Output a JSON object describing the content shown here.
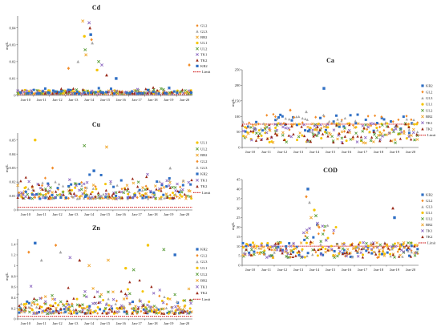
{
  "x_tick_labels": [
    "Jan-10",
    "Jan-11",
    "Jan-12",
    "Jan-13",
    "Jan-14",
    "Jan-15",
    "Jan-16",
    "Jan-17",
    "Jan-18",
    "Jan-19",
    "Jan-20"
  ],
  "series_styles": {
    "KR2": {
      "color": "#2f6fc4",
      "marker": "square"
    },
    "GL2": {
      "color": "#f28c28",
      "marker": "diamond"
    },
    "GL3": {
      "color": "#a6a6a6",
      "marker": "triangle"
    },
    "BR2": {
      "color": "#f0a830",
      "marker": "x"
    },
    "UL1": {
      "color": "#f5c400",
      "marker": "circle"
    },
    "UL2": {
      "color": "#5c9e3c",
      "marker": "x"
    },
    "TK1": {
      "color": "#8e6bc2",
      "marker": "x"
    },
    "TK2": {
      "color": "#9a2a1a",
      "marker": "triangle"
    },
    "Limit": {
      "color": "#d32f2f",
      "marker": "dash"
    }
  },
  "chart_data": [
    {
      "id": "cd",
      "type": "scatter",
      "title": "Cd",
      "ylabel": "mg/L",
      "yticks": [
        0,
        0.01,
        0.02,
        0.03,
        0.04
      ],
      "ytick_labels": [
        "0",
        "0.01",
        "0.02",
        "0.03",
        "0.04"
      ],
      "ylim": [
        0,
        0.047
      ],
      "legend": [
        "GL2",
        "GL3",
        "BR2",
        "UL1",
        "UL2",
        "TK1",
        "TK2",
        "KR2",
        "Limit"
      ],
      "limit": 0.0005,
      "base": 0.001,
      "noise": 0.0035,
      "spikes": [
        [
          3.2,
          0.016
        ],
        [
          3.8,
          0.02
        ],
        [
          4.1,
          0.044
        ],
        [
          4.2,
          0.035
        ],
        [
          4.25,
          0.027
        ],
        [
          4.5,
          0.043
        ],
        [
          4.55,
          0.04
        ],
        [
          4.6,
          0.036
        ],
        [
          4.65,
          0.033
        ],
        [
          4.7,
          0.031
        ],
        [
          4.3,
          0.024
        ],
        [
          5.0,
          0.015
        ],
        [
          5.1,
          0.02
        ],
        [
          5.3,
          0.018
        ],
        [
          5.6,
          0.012
        ],
        [
          6.2,
          0.01
        ],
        [
          10.8,
          0.018
        ]
      ]
    },
    {
      "id": "ca",
      "type": "scatter",
      "title": "Ca",
      "ylabel": "mg/L",
      "yticks": [
        0,
        50,
        100,
        150,
        200,
        250
      ],
      "ytick_labels": [
        "0",
        "50",
        "100",
        "150",
        "200",
        "250"
      ],
      "ylim": [
        0,
        250
      ],
      "legend": [
        "KR2",
        "GL2",
        "GL3",
        "UL1",
        "UL2",
        "BR2",
        "TK1",
        "TK2",
        "Limit"
      ],
      "limit": 75,
      "base": 70,
      "noise": 40,
      "spikes": [
        [
          5.1,
          190
        ],
        [
          3.0,
          120
        ],
        [
          4.0,
          115
        ]
      ]
    },
    {
      "id": "cu",
      "type": "scatter",
      "title": "Cu",
      "ylabel": "mg/L",
      "yticks": [
        0,
        0.01,
        0.02,
        0.03,
        0.04,
        0.05
      ],
      "ytick_labels": [
        "0",
        "0.01",
        "0.02",
        "0.03",
        "0.04",
        "0.05"
      ],
      "ylim": [
        0,
        0.055
      ],
      "legend": [
        "UL1",
        "UL2",
        "BR2",
        "GL2",
        "GL3",
        "KR2",
        "TK1",
        "TK2",
        "Limit"
      ],
      "limit": 0.002,
      "base": 0.008,
      "noise": 0.02,
      "spikes": [
        [
          1.1,
          0.05
        ],
        [
          4.2,
          0.046
        ],
        [
          5.6,
          0.045
        ],
        [
          2.2,
          0.03
        ],
        [
          9.6,
          0.03
        ],
        [
          4.8,
          0.028
        ]
      ]
    },
    {
      "id": "cod",
      "type": "scatter",
      "title": "COD",
      "ylabel": "mg/L",
      "yticks": [
        0,
        5,
        10,
        15,
        20,
        25,
        30,
        35,
        40,
        45
      ],
      "ytick_labels": [
        "0",
        "5",
        "10",
        "15",
        "20",
        "25",
        "30",
        "35",
        "40",
        "45"
      ],
      "ylim": [
        0,
        45
      ],
      "legend": [
        "KR2",
        "GL2",
        "GL3",
        "UL1",
        "UL2",
        "BR2",
        "TK1",
        "TK2",
        "Limit"
      ],
      "limit": 10,
      "base": 8,
      "noise": 8,
      "spikes": [
        [
          4.1,
          40
        ],
        [
          4.0,
          36
        ],
        [
          4.2,
          33
        ],
        [
          4.5,
          29
        ],
        [
          4.6,
          26
        ],
        [
          4.3,
          25
        ],
        [
          4.7,
          22
        ],
        [
          9.4,
          30
        ],
        [
          9.5,
          25
        ],
        [
          4.8,
          20
        ]
      ]
    },
    {
      "id": "zn",
      "type": "scatter",
      "title": "Zn",
      "ylabel": "mg/L",
      "yticks": [
        0,
        0.2,
        0.4,
        0.6,
        0.8,
        1,
        1.2,
        1.4
      ],
      "ytick_labels": [
        "0",
        "0.2",
        "0.4",
        "0.6",
        "0.8",
        "1",
        "1.2",
        "1.4"
      ],
      "ylim": [
        0,
        1.5
      ],
      "legend": [
        "KR2",
        "GL2",
        "GL3",
        "UL1",
        "UL2",
        "BR2",
        "TK1",
        "TK2",
        "Limit"
      ],
      "limit": 0.05,
      "base": 0.1,
      "noise": 0.55,
      "spikes": [
        [
          1.1,
          1.42
        ],
        [
          2.4,
          1.38
        ],
        [
          2.7,
          1.25
        ],
        [
          8.2,
          1.38
        ],
        [
          9.2,
          1.3
        ],
        [
          5.7,
          1.1
        ],
        [
          3.3,
          1.15
        ],
        [
          3.9,
          1.1
        ],
        [
          9.9,
          1.2
        ],
        [
          0.7,
          1.25
        ],
        [
          1.5,
          1.1
        ],
        [
          6.8,
          0.95
        ],
        [
          7.3,
          0.92
        ],
        [
          4.5,
          1.0
        ]
      ]
    }
  ]
}
